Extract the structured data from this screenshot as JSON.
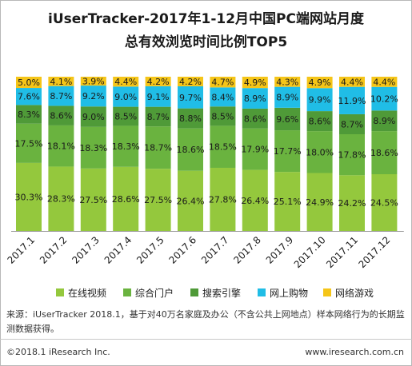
{
  "header": {
    "title_line1": "iUserTracker-2017年1-12月中国PC端网站月度",
    "title_line2": "总有效浏览时间比例TOP5"
  },
  "chart_data": {
    "type": "bar",
    "stacked": true,
    "categories": [
      "2017.1",
      "2017.2",
      "2017.3",
      "2017.4",
      "2017.5",
      "2017.6",
      "2017.7",
      "2017.8",
      "2017.9",
      "2017.10",
      "2017.11",
      "2017.12"
    ],
    "series": [
      {
        "name": "在线视频",
        "color": "#94c83d",
        "values": [
          30.3,
          28.3,
          27.5,
          28.6,
          27.5,
          26.4,
          27.8,
          26.4,
          25.1,
          24.9,
          24.2,
          24.5
        ]
      },
      {
        "name": "综合门户",
        "color": "#6ab33f",
        "values": [
          17.5,
          18.1,
          18.3,
          18.3,
          18.7,
          18.6,
          18.5,
          17.9,
          17.7,
          18.0,
          17.8,
          18.6
        ]
      },
      {
        "name": "搜索引擎",
        "color": "#4f9a38",
        "values": [
          8.3,
          8.6,
          9.0,
          8.5,
          8.7,
          8.8,
          8.5,
          8.6,
          9.6,
          8.6,
          8.7,
          8.9
        ]
      },
      {
        "name": "网上购物",
        "color": "#20bde6",
        "values": [
          7.6,
          8.7,
          9.2,
          9.0,
          9.1,
          9.7,
          8.4,
          8.9,
          8.9,
          9.9,
          11.9,
          10.2
        ]
      },
      {
        "name": "网络游戏",
        "color": "#f5c518",
        "values": [
          5.0,
          4.1,
          3.9,
          4.4,
          4.2,
          4.2,
          4.7,
          4.9,
          4.3,
          4.9,
          4.4,
          4.4
        ]
      }
    ],
    "value_suffix": "%",
    "grid": false
  },
  "source": {
    "text": "来源：iUserTracker 2018.1，基于对40万名家庭及办公（不含公共上网地点）样本网络行为的长期监测数据获得。"
  },
  "footer": {
    "copyright": "©2018.1  iResearch Inc.",
    "url": "www.iresearch.com.cn"
  }
}
